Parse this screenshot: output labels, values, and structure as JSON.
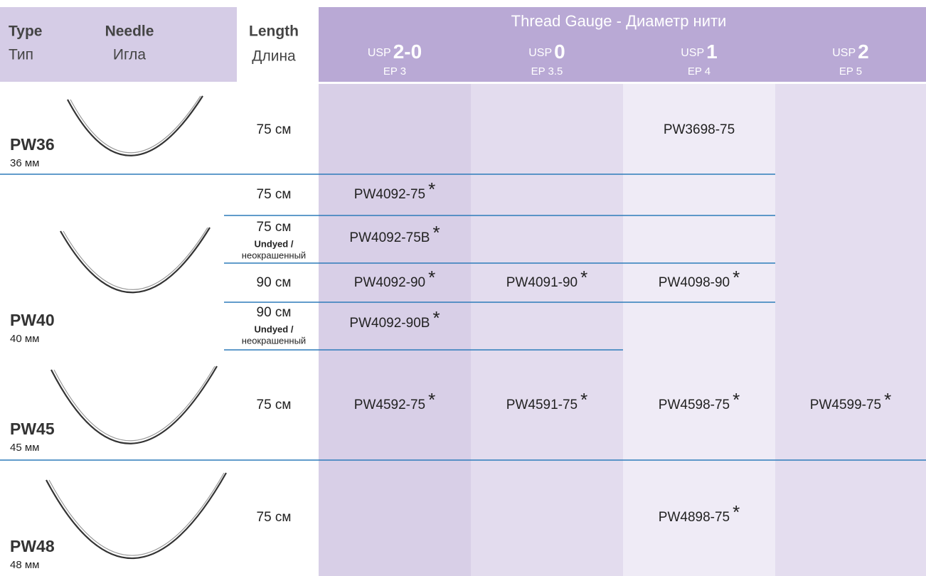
{
  "header": {
    "type_en": "Type",
    "type_ru": "Тип",
    "needle_en": "Needle",
    "needle_ru": "Игла",
    "length_en": "Length",
    "length_ru": "Длина",
    "gauge_title": "Thread Gauge - Диаметр нити",
    "gauges": [
      {
        "usp_prefix": "USP",
        "usp": "2-0",
        "ep": "EP 3"
      },
      {
        "usp_prefix": "USP",
        "usp": "0",
        "ep": "EP 3.5"
      },
      {
        "usp_prefix": "USP",
        "usp": "1",
        "ep": "EP 4"
      },
      {
        "usp_prefix": "USP",
        "usp": "2",
        "ep": "EP 5"
      }
    ]
  },
  "needles": [
    {
      "type": "PW36",
      "size": "36 мм",
      "rows": [
        {
          "length": "75 см",
          "cells": [
            null,
            null,
            {
              "code": "PW3698-75"
            },
            null
          ]
        }
      ]
    },
    {
      "type": "PW40",
      "size": "40 мм",
      "rows": [
        {
          "length": "75 см",
          "cells": [
            {
              "code": "PW4092-75",
              "mark": "*"
            },
            null,
            null,
            null
          ]
        },
        {
          "length": "75 см",
          "note": [
            "Undyed /",
            "неокрашенный"
          ],
          "cells": [
            {
              "code": "PW4092-75B",
              "mark": "*"
            },
            null,
            null,
            null
          ]
        },
        {
          "length": "90 см",
          "cells": [
            {
              "code": "PW4092-90",
              "mark": "*"
            },
            {
              "code": "PW4091-90",
              "mark": "*"
            },
            {
              "code": "PW4098-90",
              "mark": "*"
            },
            null
          ]
        },
        {
          "length": "90 см",
          "note": [
            "Undyed /",
            "неокрашенный"
          ],
          "cells": [
            {
              "code": "PW4092-90B",
              "mark": "*"
            },
            null,
            null,
            null
          ]
        }
      ]
    },
    {
      "type": "PW45",
      "size": "45 мм",
      "rows": [
        {
          "length": "75 см",
          "cells": [
            {
              "code": "PW4592-75",
              "mark": "*"
            },
            {
              "code": "PW4591-75",
              "mark": "*"
            },
            {
              "code": "PW4598-75",
              "mark": "*"
            },
            {
              "code": "PW4599-75",
              "mark": "*"
            }
          ]
        }
      ]
    },
    {
      "type": "PW48",
      "size": "48 мм",
      "rows": [
        {
          "length": "75 см",
          "cells": [
            null,
            null,
            {
              "code": "PW4898-75",
              "mark": "*"
            },
            null
          ]
        }
      ]
    }
  ]
}
